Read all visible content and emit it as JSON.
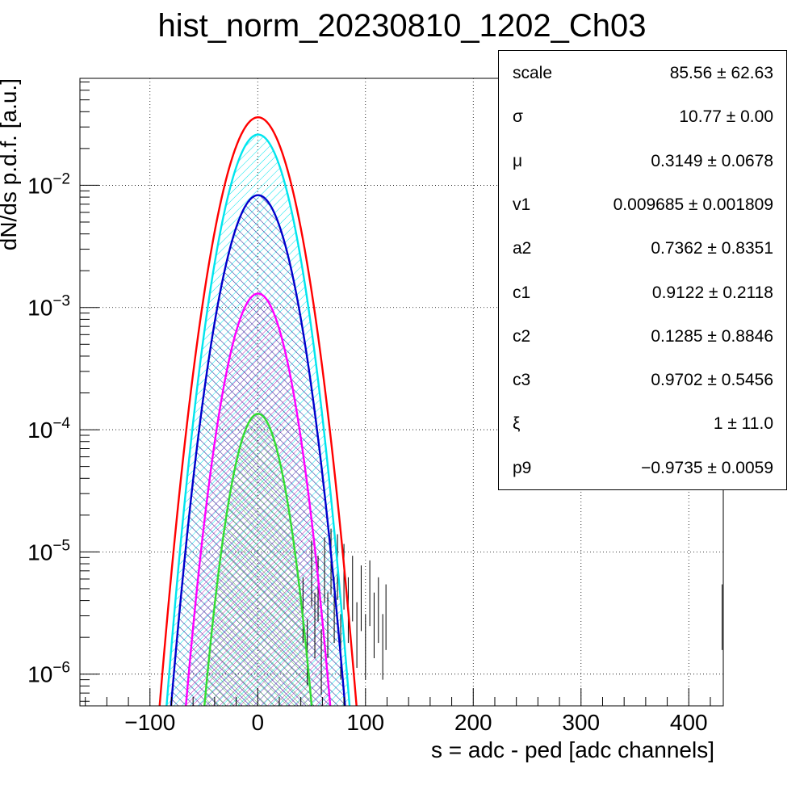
{
  "title": "hist_norm_20230810_1202_Ch03",
  "chart_data": {
    "type": "line",
    "title": "hist_norm_20230810_1202_Ch03",
    "xlabel": "s = adc - ped [adc channels]",
    "ylabel": "dN/ds p.d.f. [a.u.]",
    "xlim": [
      -165,
      432
    ],
    "ylim": [
      5.5e-07,
      0.075
    ],
    "yscale": "log",
    "grid": true,
    "x_ticks": [
      "−100",
      "0",
      "100",
      "200",
      "300",
      "400"
    ],
    "x_tick_values": [
      -100,
      0,
      100,
      200,
      300,
      400
    ],
    "y_ticks": [
      {
        "base": "10",
        "exp": "−2",
        "value": 0.01
      },
      {
        "base": "10",
        "exp": "−3",
        "value": 0.001
      },
      {
        "base": "10",
        "exp": "−4",
        "value": 0.0001
      },
      {
        "base": "10",
        "exp": "−5",
        "value": 1e-05
      },
      {
        "base": "10",
        "exp": "−6",
        "value": 1e-06
      }
    ],
    "series": [
      {
        "role": "total-fit",
        "color": "#ff0000",
        "mu": 0.3149,
        "sigma": 19.4,
        "peak": 0.036
      },
      {
        "role": "component-cyan",
        "color": "#00e5ee",
        "mu": 0.3149,
        "sigma": 18.3,
        "peak": 0.026
      },
      {
        "role": "component-blue",
        "color": "#0000cc",
        "mu": 0.3149,
        "sigma": 18.4,
        "peak": 0.0083
      },
      {
        "role": "component-magenta",
        "color": "#ff00ff",
        "mu": 0.3149,
        "sigma": 17.0,
        "peak": 0.0013
      },
      {
        "role": "component-green",
        "color": "#33dd33",
        "mu": 0.3149,
        "sigma": 15.0,
        "peak": 0.000135
      }
    ],
    "tail_points": [
      {
        "x": 42,
        "y": 4e-06
      },
      {
        "x": 46,
        "y": 1.8e-06
      },
      {
        "x": 50,
        "y": 8e-06
      },
      {
        "x": 53,
        "y": 3e-06
      },
      {
        "x": 56,
        "y": 6e-06
      },
      {
        "x": 59,
        "y": 1.5e-06
      },
      {
        "x": 62,
        "y": 8.5e-06
      },
      {
        "x": 65,
        "y": 3e-06
      },
      {
        "x": 68,
        "y": 1e-05
      },
      {
        "x": 71,
        "y": 4e-06
      },
      {
        "x": 74,
        "y": 9e-06
      },
      {
        "x": 77,
        "y": 2e-06
      },
      {
        "x": 80,
        "y": 7.5e-06
      },
      {
        "x": 84,
        "y": 4e-06
      },
      {
        "x": 88,
        "y": 6e-06
      },
      {
        "x": 92,
        "y": 2.5e-06
      },
      {
        "x": 96,
        "y": 5e-06
      },
      {
        "x": 100,
        "y": 2e-06
      },
      {
        "x": 104,
        "y": 5.5e-06
      },
      {
        "x": 108,
        "y": 3e-06
      },
      {
        "x": 112,
        "y": 4e-06
      },
      {
        "x": 116,
        "y": 2e-06
      },
      {
        "x": 119,
        "y": 3.5e-06
      },
      {
        "x": 431,
        "y": 3.5e-06
      }
    ],
    "stats": [
      {
        "name": "scale",
        "value": "85.56 ± 62.63"
      },
      {
        "name": "σ",
        "value": "10.77 ± 0.00"
      },
      {
        "name": "μ",
        "value": "0.3149 ± 0.0678"
      },
      {
        "name": "v1",
        "value": "0.009685 ± 0.001809"
      },
      {
        "name": "a2",
        "value": "0.7362 ± 0.8351"
      },
      {
        "name": "c1",
        "value": "0.9122 ± 0.2118"
      },
      {
        "name": "c2",
        "value": "0.1285 ± 0.8846"
      },
      {
        "name": "c3",
        "value": "0.9702 ± 0.5456"
      },
      {
        "name": "ξ",
        "value": "1 ± 11.0"
      },
      {
        "name": "p9",
        "value": "−0.9735 ± 0.0059"
      }
    ]
  }
}
